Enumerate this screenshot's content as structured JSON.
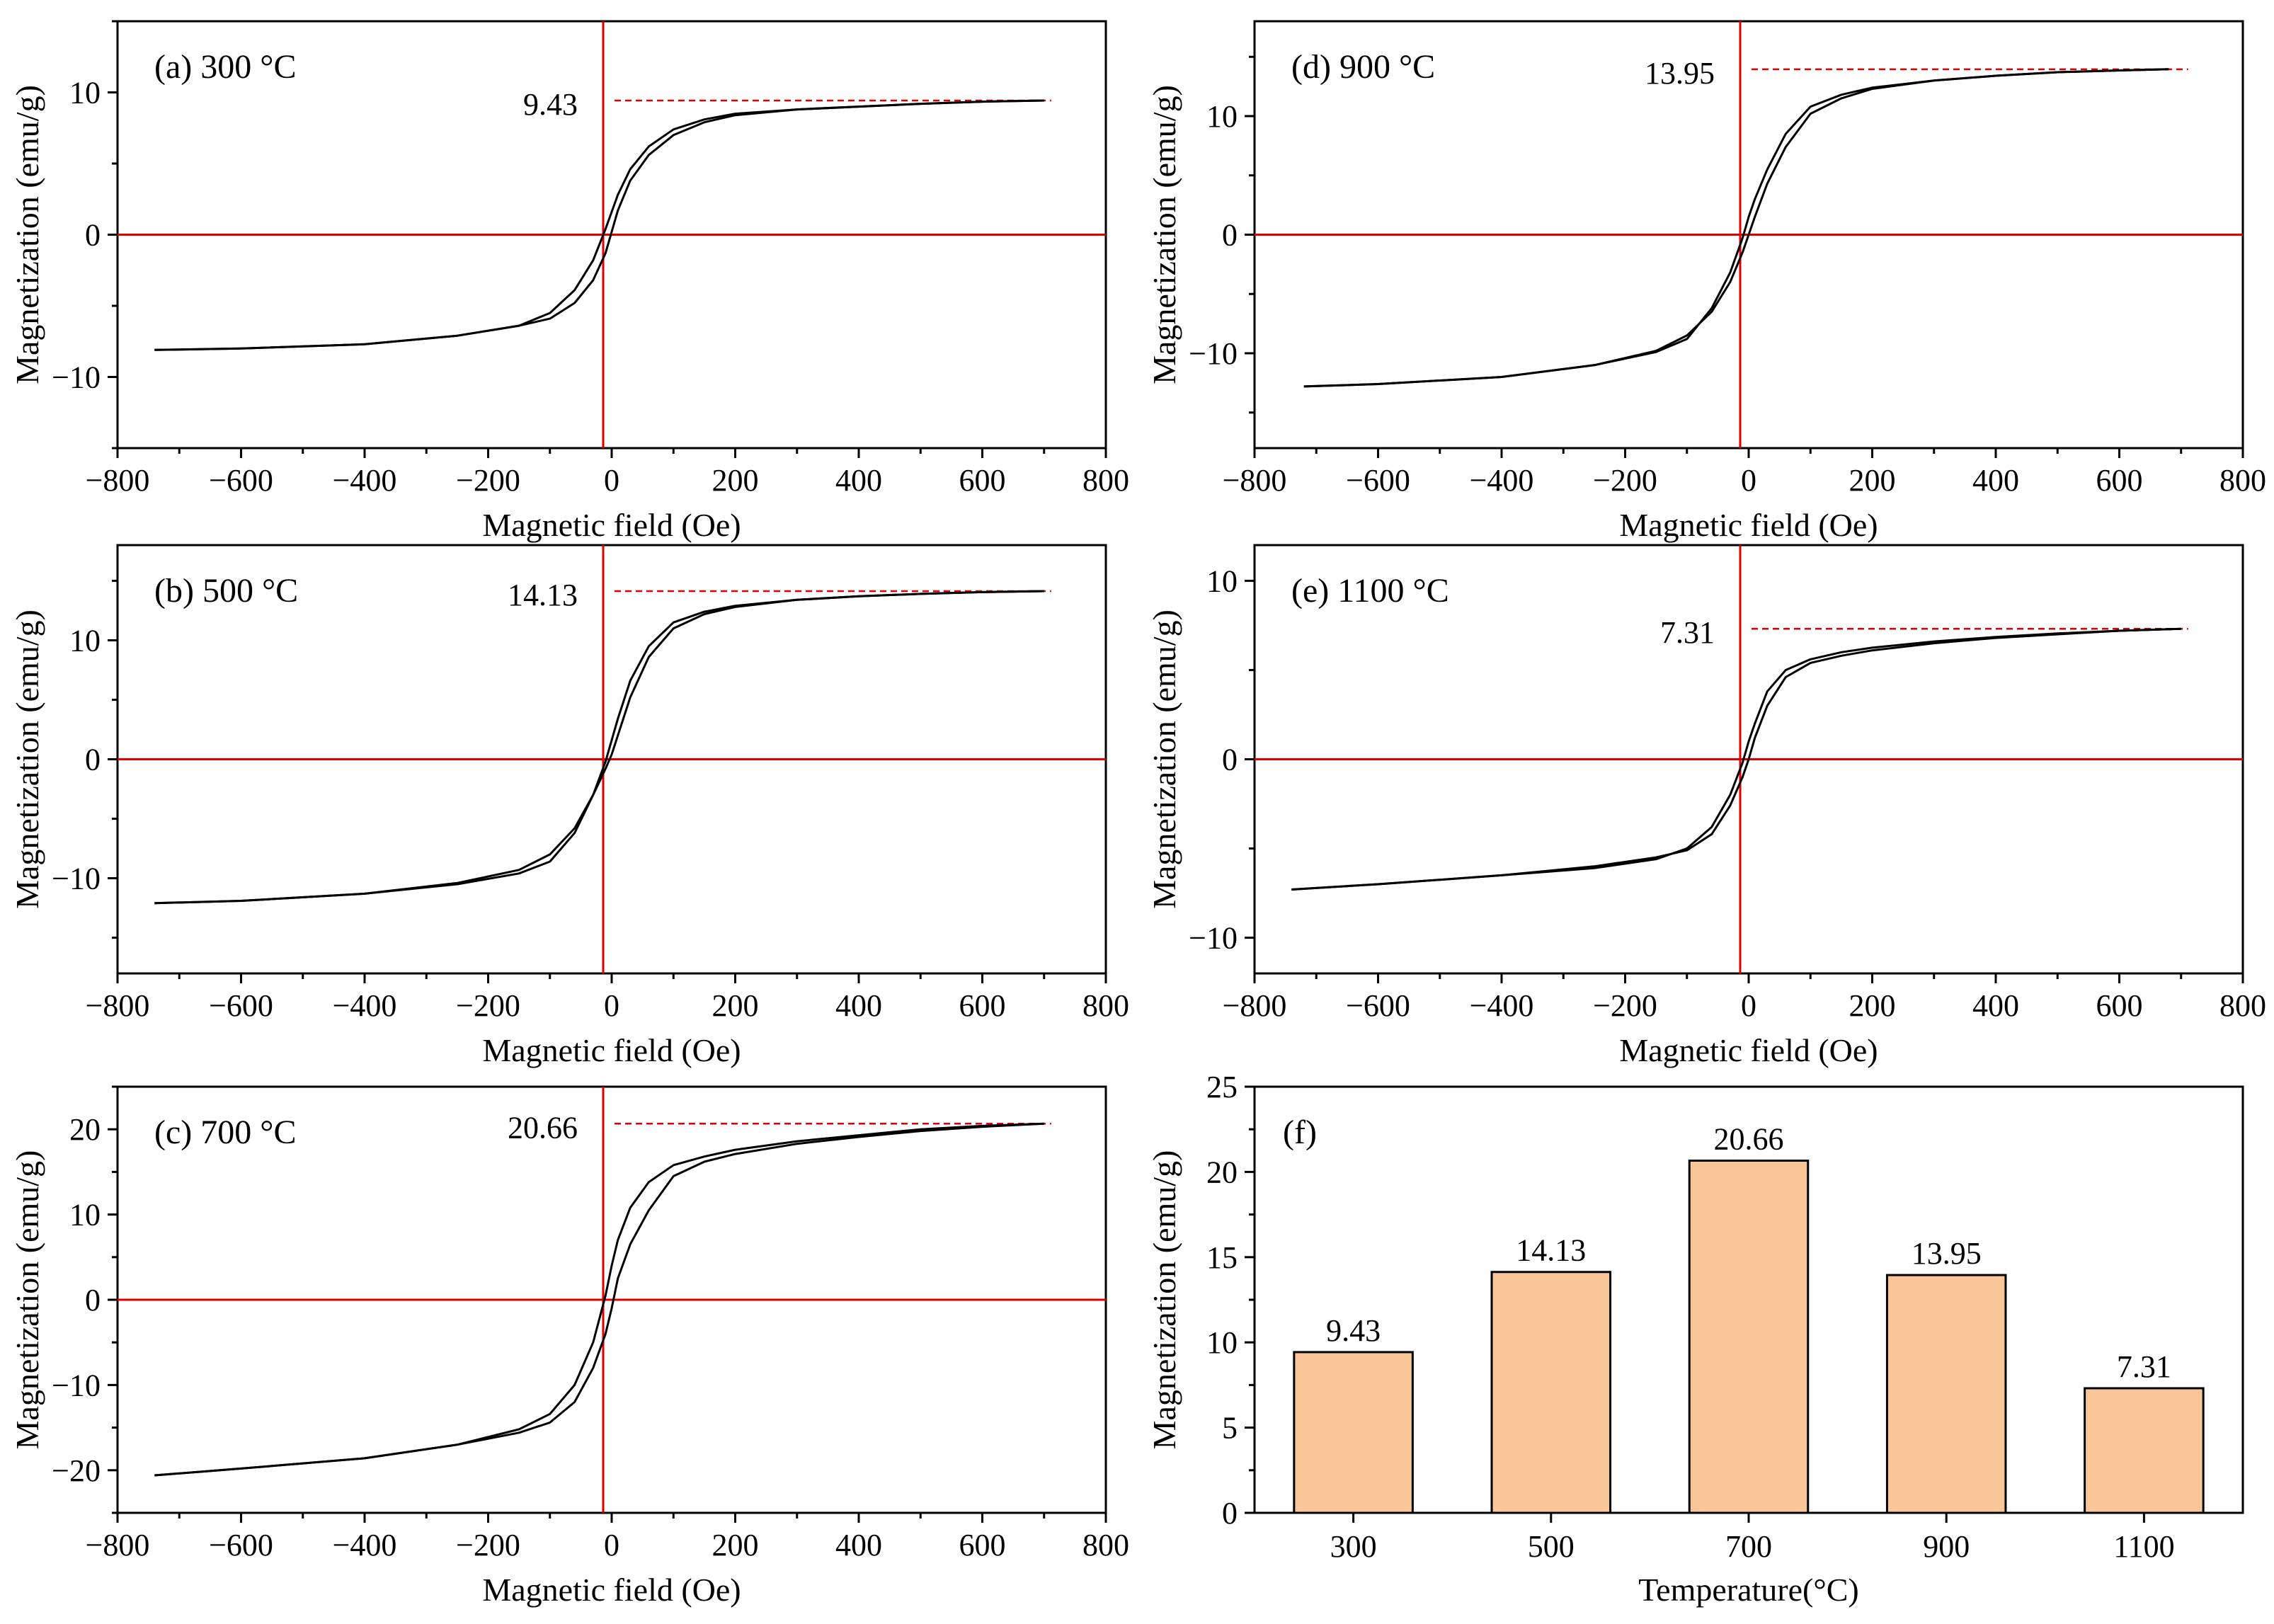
{
  "chart_data": [
    {
      "panel": "a",
      "type": "line",
      "label": "(a) 300 °C",
      "xlabel": "Magnetic field (Oe)",
      "ylabel": "Magnetization (emu/g)",
      "xlim": [
        -800,
        800
      ],
      "ylim": [
        -15,
        15
      ],
      "xticks": [
        "−800",
        "−600",
        "−400",
        "−200",
        "0",
        "200",
        "400",
        "600",
        "800"
      ],
      "xtick_values": [
        -800,
        -600,
        -400,
        -200,
        0,
        200,
        400,
        600,
        800
      ],
      "yticks": [
        "−10",
        "0",
        "10"
      ],
      "ytick_values": [
        -10,
        0,
        10
      ],
      "annotation": "9.43",
      "saturation": 9.43,
      "series": [
        {
          "x": [
            -740,
            -600,
            -400,
            -250,
            -150,
            -100,
            -60,
            -30,
            -10,
            0,
            10,
            30,
            60,
            100,
            150,
            200,
            300,
            400,
            500,
            600,
            700
          ],
          "y": [
            -8.1,
            -8.0,
            -7.7,
            -7.1,
            -6.4,
            -5.9,
            -4.8,
            -3.2,
            -1.3,
            0.2,
            1.7,
            3.8,
            5.6,
            7.0,
            7.9,
            8.4,
            8.8,
            9.0,
            9.2,
            9.35,
            9.43
          ]
        },
        {
          "x": [
            700,
            600,
            500,
            400,
            300,
            200,
            150,
            100,
            60,
            30,
            10,
            0,
            -10,
            -30,
            -60,
            -100,
            -150,
            -250,
            -400,
            -600,
            -740
          ],
          "y": [
            9.43,
            9.35,
            9.2,
            9.0,
            8.8,
            8.5,
            8.1,
            7.4,
            6.2,
            4.6,
            2.8,
            1.6,
            0.4,
            -1.8,
            -3.9,
            -5.5,
            -6.4,
            -7.1,
            -7.7,
            -8.0,
            -8.1
          ]
        }
      ]
    },
    {
      "panel": "b",
      "type": "line",
      "label": "(b) 500 °C",
      "xlabel": "Magnetic field (Oe)",
      "ylabel": "Magnetization (emu/g)",
      "xlim": [
        -800,
        800
      ],
      "ylim": [
        -18,
        18
      ],
      "xticks": [
        "−800",
        "−600",
        "−400",
        "−200",
        "0",
        "200",
        "400",
        "600",
        "800"
      ],
      "xtick_values": [
        -800,
        -600,
        -400,
        -200,
        0,
        200,
        400,
        600,
        800
      ],
      "yticks": [
        "−10",
        "0",
        "10"
      ],
      "ytick_values": [
        -10,
        0,
        10
      ],
      "annotation": "14.13",
      "saturation": 14.13,
      "series": [
        {
          "x": [
            -740,
            -600,
            -400,
            -250,
            -150,
            -100,
            -60,
            -30,
            -10,
            0,
            10,
            30,
            60,
            100,
            150,
            200,
            300,
            400,
            500,
            600,
            700
          ],
          "y": [
            -12.1,
            -11.9,
            -11.3,
            -10.4,
            -9.3,
            -8.0,
            -5.8,
            -3.0,
            -0.8,
            0.4,
            2.0,
            5.2,
            8.6,
            11.0,
            12.2,
            12.8,
            13.4,
            13.7,
            13.9,
            14.05,
            14.13
          ]
        },
        {
          "x": [
            700,
            600,
            500,
            400,
            300,
            200,
            150,
            100,
            60,
            30,
            10,
            0,
            -10,
            -30,
            -60,
            -100,
            -150,
            -250,
            -400,
            -600,
            -740
          ],
          "y": [
            14.13,
            14.05,
            13.9,
            13.7,
            13.4,
            12.9,
            12.4,
            11.5,
            9.5,
            6.6,
            3.4,
            1.6,
            -0.2,
            -3.0,
            -6.2,
            -8.6,
            -9.6,
            -10.5,
            -11.3,
            -11.9,
            -12.1
          ]
        }
      ]
    },
    {
      "panel": "c",
      "type": "line",
      "label": "(c) 700 °C",
      "xlabel": "Magnetic field (Oe)",
      "ylabel": "Magnetization (emu/g)",
      "xlim": [
        -800,
        800
      ],
      "ylim": [
        -25,
        25
      ],
      "xticks": [
        "−800",
        "−600",
        "−400",
        "−200",
        "0",
        "200",
        "400",
        "600",
        "800"
      ],
      "xtick_values": [
        -800,
        -600,
        -400,
        -200,
        0,
        200,
        400,
        600,
        800
      ],
      "yticks": [
        "−20",
        "−10",
        "0",
        "10",
        "20"
      ],
      "ytick_values": [
        -20,
        -10,
        0,
        10,
        20
      ],
      "annotation": "20.66",
      "saturation": 20.66,
      "series": [
        {
          "x": [
            -740,
            -600,
            -400,
            -250,
            -150,
            -100,
            -60,
            -30,
            -10,
            0,
            10,
            30,
            60,
            100,
            150,
            200,
            300,
            400,
            500,
            600,
            700
          ],
          "y": [
            -20.6,
            -19.8,
            -18.6,
            -17.0,
            -15.6,
            -14.4,
            -12.0,
            -8.0,
            -4.0,
            -1.0,
            2.5,
            6.5,
            10.5,
            14.5,
            16.2,
            17.1,
            18.3,
            19.1,
            19.8,
            20.3,
            20.66
          ]
        },
        {
          "x": [
            700,
            600,
            500,
            400,
            300,
            200,
            150,
            100,
            60,
            30,
            10,
            0,
            -10,
            -30,
            -60,
            -100,
            -150,
            -250,
            -400,
            -600,
            -740
          ],
          "y": [
            20.66,
            20.4,
            20.0,
            19.3,
            18.6,
            17.6,
            16.8,
            15.8,
            13.8,
            10.8,
            7.0,
            4.0,
            0.5,
            -5.0,
            -10.0,
            -13.4,
            -15.2,
            -17.0,
            -18.6,
            -19.8,
            -20.6
          ]
        }
      ]
    },
    {
      "panel": "d",
      "type": "line",
      "label": "(d) 900 °C",
      "xlabel": "Magnetic field (Oe)",
      "ylabel": "Magnetization (emu/g)",
      "xlim": [
        -800,
        800
      ],
      "ylim": [
        -18,
        18
      ],
      "xticks": [
        "−800",
        "−600",
        "−400",
        "−200",
        "0",
        "200",
        "400",
        "600",
        "800"
      ],
      "xtick_values": [
        -800,
        -600,
        -400,
        -200,
        0,
        200,
        400,
        600,
        800
      ],
      "yticks": [
        "−10",
        "0",
        "10"
      ],
      "ytick_values": [
        -10,
        0,
        10
      ],
      "annotation": "13.95",
      "saturation": 13.95,
      "series": [
        {
          "x": [
            -720,
            -600,
            -400,
            -250,
            -150,
            -100,
            -60,
            -30,
            -10,
            0,
            10,
            30,
            60,
            100,
            150,
            200,
            300,
            400,
            500,
            600,
            680
          ],
          "y": [
            -12.8,
            -12.6,
            -12.0,
            -11.0,
            -9.8,
            -8.5,
            -6.5,
            -4.0,
            -1.5,
            0.0,
            1.5,
            4.3,
            7.4,
            10.2,
            11.5,
            12.3,
            13.0,
            13.4,
            13.7,
            13.85,
            13.95
          ]
        },
        {
          "x": [
            680,
            600,
            500,
            400,
            300,
            200,
            150,
            100,
            60,
            30,
            10,
            0,
            -10,
            -30,
            -60,
            -100,
            -150,
            -250,
            -400,
            -600,
            -720
          ],
          "y": [
            13.95,
            13.85,
            13.7,
            13.4,
            13.0,
            12.4,
            11.8,
            10.8,
            8.5,
            5.5,
            3.0,
            1.5,
            -0.3,
            -3.2,
            -6.2,
            -8.8,
            -9.9,
            -11.0,
            -12.0,
            -12.6,
            -12.8
          ]
        }
      ]
    },
    {
      "panel": "e",
      "type": "line",
      "label": "(e) 1100 °C",
      "xlabel": "Magnetic field (Oe)",
      "ylabel": "Magnetization (emu/g)",
      "xlim": [
        -800,
        800
      ],
      "ylim": [
        -12,
        12
      ],
      "xticks": [
        "−800",
        "−600",
        "−400",
        "−200",
        "0",
        "200",
        "400",
        "600",
        "800"
      ],
      "xtick_values": [
        -800,
        -600,
        -400,
        -200,
        0,
        200,
        400,
        600,
        800
      ],
      "yticks": [
        "−10",
        "0",
        "10"
      ],
      "ytick_values": [
        -10,
        0,
        10
      ],
      "annotation": "7.31",
      "saturation": 7.31,
      "series": [
        {
          "x": [
            -740,
            -600,
            -400,
            -250,
            -150,
            -100,
            -60,
            -30,
            -10,
            0,
            10,
            30,
            60,
            100,
            150,
            200,
            300,
            400,
            500,
            600,
            700
          ],
          "y": [
            -7.3,
            -7.0,
            -6.5,
            -6.0,
            -5.5,
            -5.1,
            -4.2,
            -2.6,
            -1.0,
            0.0,
            1.2,
            3.0,
            4.6,
            5.4,
            5.8,
            6.1,
            6.5,
            6.8,
            7.0,
            7.2,
            7.31
          ]
        },
        {
          "x": [
            700,
            600,
            500,
            400,
            300,
            200,
            150,
            100,
            60,
            30,
            10,
            0,
            -10,
            -30,
            -60,
            -100,
            -150,
            -250,
            -400,
            -600,
            -740
          ],
          "y": [
            7.31,
            7.2,
            7.05,
            6.85,
            6.6,
            6.25,
            6.0,
            5.6,
            5.0,
            3.8,
            2.0,
            1.0,
            -0.2,
            -2.0,
            -3.8,
            -5.0,
            -5.6,
            -6.1,
            -6.5,
            -7.0,
            -7.3
          ]
        }
      ]
    },
    {
      "panel": "f",
      "type": "bar",
      "label": "(f)",
      "xlabel": "Temperature(°C)",
      "ylabel": "Magnetization (emu/g)",
      "categories": [
        "300",
        "500",
        "700",
        "900",
        "1100"
      ],
      "values": [
        9.43,
        14.13,
        20.66,
        13.95,
        7.31
      ],
      "value_labels": [
        "9.43",
        "14.13",
        "20.66",
        "13.95",
        "7.31"
      ],
      "ylim": [
        0,
        25
      ],
      "yticks": [
        "0",
        "5",
        "10",
        "15",
        "20",
        "25"
      ],
      "ytick_values": [
        0,
        5,
        10,
        15,
        20,
        25
      ],
      "bar_color": "#F9C797"
    }
  ],
  "colors": {
    "curve": "#000000",
    "axis_lines": "#E00000",
    "reference_line": "#E00000",
    "bar_fill": "#F9C797",
    "bar_edge": "#000000"
  }
}
